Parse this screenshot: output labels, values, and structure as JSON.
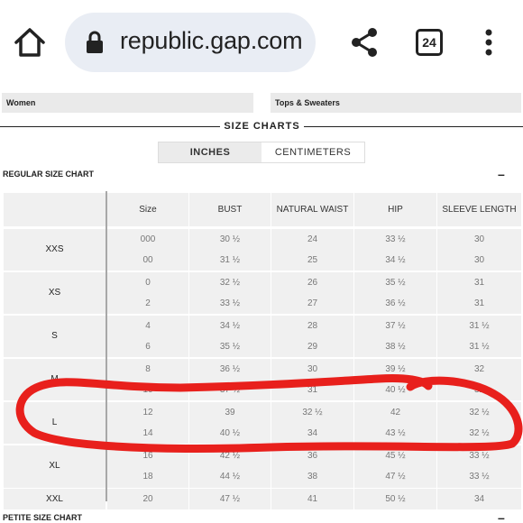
{
  "browser": {
    "url": "republic.gap.com",
    "tab_count": "24",
    "icons": [
      "home-icon",
      "lock-icon",
      "share-icon",
      "tabs-icon",
      "menu-icon"
    ]
  },
  "filters": {
    "department": "Women",
    "category": "Tops & Sweaters"
  },
  "section": {
    "title": "SIZE CHARTS"
  },
  "units": {
    "inches": "INCHES",
    "centimeters": "CENTIMETERS",
    "selected": "INCHES"
  },
  "regular_chart": {
    "title": "REGULAR SIZE CHART",
    "collapse": "–",
    "headers": [
      "Size",
      "BUST",
      "NATURAL WAIST",
      "HIP",
      "SLEEVE LENGTH"
    ],
    "groups": [
      {
        "label": "XXS",
        "rows": [
          [
            "000",
            "30 ½",
            "24",
            "33 ½",
            "30"
          ],
          [
            "00",
            "31 ½",
            "25",
            "34 ½",
            "30"
          ]
        ]
      },
      {
        "label": "XS",
        "rows": [
          [
            "0",
            "32 ½",
            "26",
            "35 ½",
            "31"
          ],
          [
            "2",
            "33 ½",
            "27",
            "36 ½",
            "31"
          ]
        ]
      },
      {
        "label": "S",
        "rows": [
          [
            "4",
            "34 ½",
            "28",
            "37 ½",
            "31 ½"
          ],
          [
            "6",
            "35 ½",
            "29",
            "38 ½",
            "31 ½"
          ]
        ]
      },
      {
        "label": "M",
        "rows": [
          [
            "8",
            "36 ½",
            "30",
            "39 ½",
            "32"
          ],
          [
            "10",
            "37 ½",
            "31",
            "40 ½",
            "32"
          ]
        ]
      },
      {
        "label": "L",
        "rows": [
          [
            "12",
            "39",
            "32 ½",
            "42",
            "32 ½"
          ],
          [
            "14",
            "40 ½",
            "34",
            "43 ½",
            "32 ½"
          ]
        ]
      },
      {
        "label": "XL",
        "rows": [
          [
            "16",
            "42 ½",
            "36",
            "45 ½",
            "33 ½"
          ],
          [
            "18",
            "44 ½",
            "38",
            "47 ½",
            "33 ½"
          ]
        ]
      },
      {
        "label": "XXL",
        "rows": [
          [
            "20",
            "47 ½",
            "41",
            "50 ½",
            "34"
          ]
        ]
      }
    ]
  },
  "petite_chart": {
    "title": "PETITE SIZE CHART",
    "collapse": "–"
  },
  "colors": {
    "annotation": "#e8201c",
    "cell_bg": "#f0f0f0",
    "url_bar": "#e9edf4"
  }
}
